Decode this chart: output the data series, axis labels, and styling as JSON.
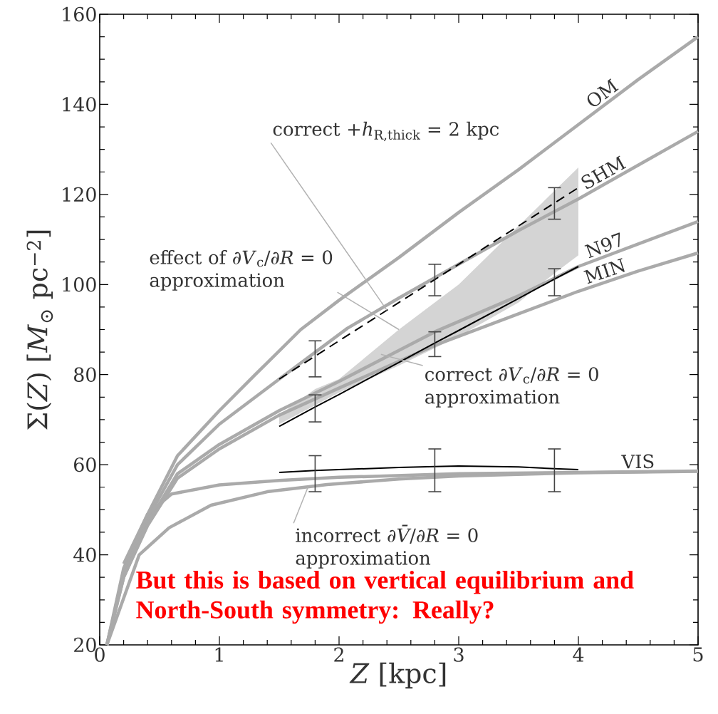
{
  "chart_data": {
    "type": "line",
    "xlabel": "*Z* [kpc]",
    "ylabel": "Σ(*Z*) [*M*$_{⊙}$ pc$^{−2}$]",
    "xlim": [
      0,
      5
    ],
    "ylim": [
      20,
      160
    ],
    "xticks": [
      0,
      1,
      2,
      3,
      4,
      5
    ],
    "yticks": [
      20,
      40,
      60,
      80,
      100,
      120,
      140,
      160
    ],
    "marker": "none",
    "series": [
      {
        "name": "OM",
        "color": "#aaaaaa",
        "x": [
          0.06,
          0.2,
          0.4,
          0.65,
          1,
          1.3,
          1.68,
          2,
          2.5,
          3,
          3.5,
          4,
          4.5,
          5
        ],
        "values": [
          20,
          37,
          49,
          62,
          72,
          80,
          90,
          96.5,
          106,
          116,
          125.5,
          135.5,
          145.5,
          155
        ]
      },
      {
        "name": "SHM",
        "color": "#aaaaaa",
        "x": [
          0.06,
          0.2,
          0.4,
          0.65,
          1,
          1.5,
          2.07,
          2.5,
          3,
          3.5,
          4,
          4.5,
          5
        ],
        "values": [
          20,
          36,
          48,
          60,
          69,
          79,
          90.3,
          97,
          104.5,
          112,
          119,
          126.5,
          134
        ]
      },
      {
        "name": "N97",
        "color": "#aaaaaa",
        "x": [
          0.06,
          0.2,
          0.4,
          0.65,
          1,
          1.5,
          2,
          2.8,
          3.5,
          4,
          4.5,
          5
        ],
        "values": [
          20,
          35,
          47,
          58,
          64.5,
          72,
          78.5,
          89.5,
          97.5,
          104,
          109,
          114
        ]
      },
      {
        "name": "MIN",
        "color": "#aaaaaa",
        "x": [
          0.06,
          0.2,
          0.4,
          0.65,
          1,
          1.5,
          2,
          2.8,
          3.5,
          4,
          4.5,
          5
        ],
        "values": [
          20,
          35,
          46.5,
          57,
          63.5,
          71,
          77,
          86.5,
          93.5,
          98.5,
          103,
          107
        ]
      },
      {
        "color": "#aaaaaa",
        "x": [
          0.2,
          0.4,
          0.6,
          1,
          1.5,
          2,
          3,
          4,
          5
        ],
        "values": [
          38,
          49,
          53.5,
          55.5,
          56.5,
          57.2,
          58,
          58.3,
          58.6
        ]
      },
      {
        "name": "VIS",
        "color": "#aaaaaa",
        "x": [
          0.06,
          0.33,
          0.58,
          0.93,
          1.4,
          1.9,
          2.5,
          3,
          4,
          5
        ],
        "values": [
          20,
          40,
          46,
          51,
          54,
          55.6,
          56.8,
          57.5,
          58.2,
          58.5
        ]
      },
      {
        "color": "#000000",
        "line_style": "dashed",
        "x": [
          1.5,
          1.8,
          2.8,
          3.8,
          4
        ],
        "values": [
          79,
          84.1,
          101.1,
          118.1,
          121.5
        ],
        "errors": [
          null,
          [
            79.5,
            87.5
          ],
          [
            97.5,
            104.5
          ],
          [
            114.5,
            121.5
          ],
          null
        ]
      },
      {
        "color": "#000000",
        "x": [
          1.5,
          1.8,
          2.0,
          2.5,
          2.8,
          3.0,
          3.5,
          3.8,
          4.0
        ],
        "values": [
          68.5,
          72.8,
          75.6,
          82.7,
          87.0,
          89.8,
          96.9,
          101.2,
          104
        ],
        "errors": [
          null,
          [
            69.5,
            75.5
          ],
          null,
          null,
          [
            84,
            89.5
          ],
          null,
          null,
          [
            97.5,
            103.5
          ],
          null
        ],
        "lower": [
          69,
          73.2,
          76,
          82,
          85.9,
          88.5,
          96,
          102.5,
          106.5
        ],
        "upper": [
          71,
          76.8,
          79,
          90,
          96,
          100,
          113,
          120.8,
          126
        ]
      },
      {
        "color": "#000000",
        "x": [
          1.5,
          1.8,
          2,
          2.5,
          2.8,
          3,
          3.5,
          3.8,
          4
        ],
        "values": [
          58.3,
          58.7,
          58.9,
          59.4,
          59.6,
          59.7,
          59.5,
          59.1,
          58.9
        ],
        "errors": [
          null,
          [
            54,
            62
          ],
          null,
          null,
          [
            54,
            63.5
          ],
          null,
          null,
          [
            54,
            63.5
          ],
          null
        ]
      }
    ],
    "annotations": [
      {
        "text": "correct +*h*$_{R,thick}$ = 2 kpc",
        "x": 2.4,
        "y": 94.3
      },
      {
        "text": "effect of ∂*V*$_{c}$/∂*R* = 0 approximation",
        "x": 2.5,
        "y": 90
      },
      {
        "text": "correct ∂*V*$_{c}$/∂*R* = 0 approximation",
        "x": 2.35,
        "y": 84.5
      },
      {
        "text": "incorrect ∂*V̄*/∂*R* = 0 approximation",
        "x": 1.74,
        "y": 55
      },
      "But this is based on vertical equilibrium and North-South symmetry: Really?"
    ]
  }
}
